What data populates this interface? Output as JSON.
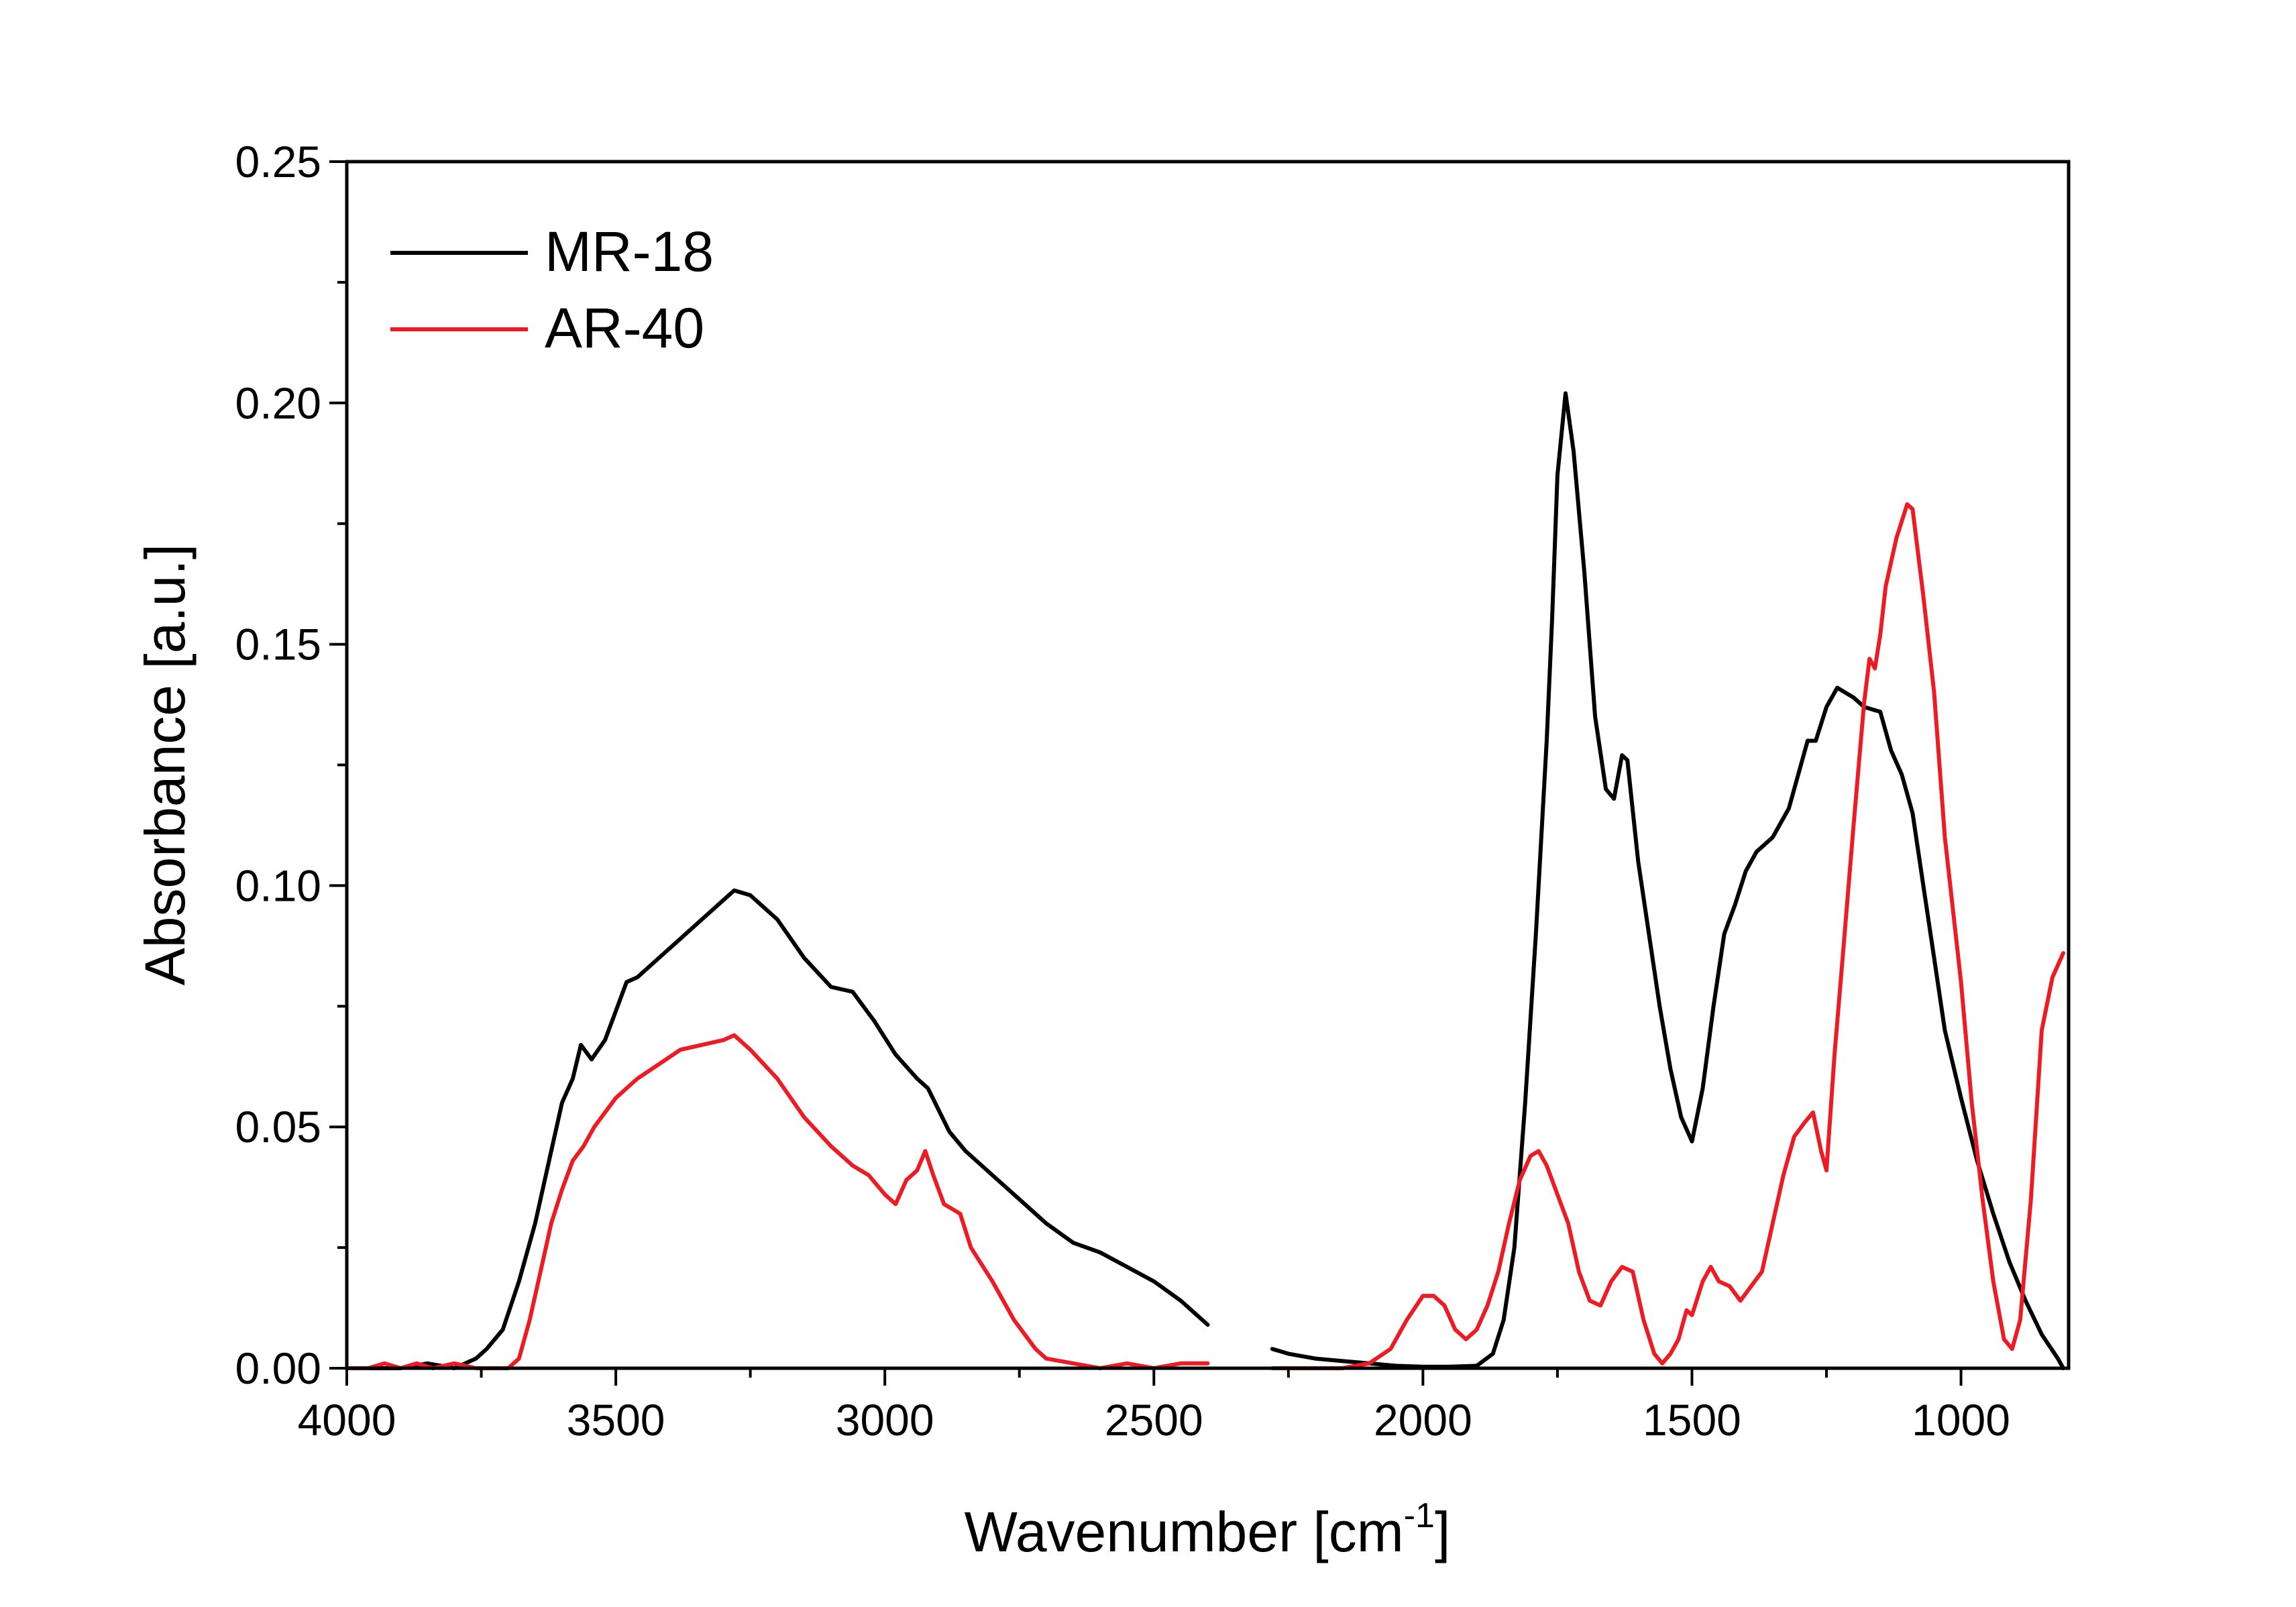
{
  "chart_data": {
    "type": "line",
    "title": "",
    "xlabel": "Wavenumber [cm",
    "xlabel_sup": "-1",
    "xlabel_end": "]",
    "ylabel": "Absorbance [a.u.]",
    "xlim": [
      4000,
      800
    ],
    "ylim": [
      0,
      0.25
    ],
    "x_reversed": true,
    "grid": false,
    "legend_position": "top-left",
    "x_ticks": [
      {
        "value": 4000,
        "label": "4000"
      },
      {
        "value": 3500,
        "label": "3500"
      },
      {
        "value": 3000,
        "label": "3000"
      },
      {
        "value": 2500,
        "label": "2500"
      },
      {
        "value": 2000,
        "label": "2000"
      },
      {
        "value": 1500,
        "label": "1500"
      },
      {
        "value": 1000,
        "label": "1000"
      }
    ],
    "y_ticks": [
      {
        "value": 0,
        "label": "0.00"
      },
      {
        "value": 0.05,
        "label": "0.05"
      },
      {
        "value": 0.1,
        "label": "0.10"
      },
      {
        "value": 0.15,
        "label": "0.15"
      },
      {
        "value": 0.2,
        "label": "0.20"
      },
      {
        "value": 0.25,
        "label": "0.25"
      }
    ],
    "series": [
      {
        "name": "MR-18",
        "color": "#000000",
        "segments": [
          [
            [
              4000,
              0.0
            ],
            [
              3900,
              0.0
            ],
            [
              3850,
              0.001
            ],
            [
              3800,
              0.0
            ],
            [
              3760,
              0.002
            ],
            [
              3740,
              0.004
            ],
            [
              3710,
              0.008
            ],
            [
              3680,
              0.018
            ],
            [
              3650,
              0.03
            ],
            [
              3620,
              0.045
            ],
            [
              3600,
              0.055
            ],
            [
              3580,
              0.06
            ],
            [
              3565,
              0.067
            ],
            [
              3545,
              0.064
            ],
            [
              3520,
              0.068
            ],
            [
              3500,
              0.074
            ],
            [
              3480,
              0.08
            ],
            [
              3460,
              0.081
            ],
            [
              3420,
              0.085
            ],
            [
              3380,
              0.089
            ],
            [
              3340,
              0.093
            ],
            [
              3300,
              0.097
            ],
            [
              3280,
              0.099
            ],
            [
              3250,
              0.098
            ],
            [
              3200,
              0.093
            ],
            [
              3150,
              0.085
            ],
            [
              3100,
              0.079
            ],
            [
              3060,
              0.078
            ],
            [
              3020,
              0.072
            ],
            [
              2980,
              0.065
            ],
            [
              2940,
              0.06
            ],
            [
              2920,
              0.058
            ],
            [
              2880,
              0.049
            ],
            [
              2850,
              0.045
            ],
            [
              2800,
              0.04
            ],
            [
              2750,
              0.035
            ],
            [
              2700,
              0.03
            ],
            [
              2650,
              0.026
            ],
            [
              2600,
              0.024
            ],
            [
              2550,
              0.021
            ],
            [
              2500,
              0.018
            ],
            [
              2450,
              0.014
            ],
            [
              2400,
              0.009
            ]
          ],
          [
            [
              2280,
              0.004
            ],
            [
              2250,
              0.003
            ],
            [
              2200,
              0.002
            ],
            [
              2150,
              0.0015
            ],
            [
              2100,
              0.001
            ],
            [
              2050,
              0.0005
            ],
            [
              2000,
              0.0003
            ],
            [
              1950,
              0.0003
            ],
            [
              1900,
              0.0005
            ],
            [
              1870,
              0.003
            ],
            [
              1850,
              0.01
            ],
            [
              1830,
              0.025
            ],
            [
              1810,
              0.055
            ],
            [
              1790,
              0.09
            ],
            [
              1770,
              0.13
            ],
            [
              1760,
              0.155
            ],
            [
              1750,
              0.185
            ],
            [
              1735,
              0.202
            ],
            [
              1720,
              0.19
            ],
            [
              1700,
              0.165
            ],
            [
              1680,
              0.135
            ],
            [
              1660,
              0.12
            ],
            [
              1645,
              0.118
            ],
            [
              1630,
              0.127
            ],
            [
              1620,
              0.126
            ],
            [
              1600,
              0.105
            ],
            [
              1580,
              0.09
            ],
            [
              1560,
              0.075
            ],
            [
              1540,
              0.062
            ],
            [
              1520,
              0.052
            ],
            [
              1500,
              0.047
            ],
            [
              1480,
              0.058
            ],
            [
              1460,
              0.075
            ],
            [
              1440,
              0.09
            ],
            [
              1420,
              0.096
            ],
            [
              1400,
              0.103
            ],
            [
              1380,
              0.107
            ],
            [
              1350,
              0.11
            ],
            [
              1320,
              0.116
            ],
            [
              1300,
              0.124
            ],
            [
              1285,
              0.13
            ],
            [
              1270,
              0.13
            ],
            [
              1250,
              0.137
            ],
            [
              1230,
              0.141
            ],
            [
              1200,
              0.139
            ],
            [
              1180,
              0.137
            ],
            [
              1150,
              0.136
            ],
            [
              1130,
              0.128
            ],
            [
              1110,
              0.123
            ],
            [
              1090,
              0.115
            ],
            [
              1070,
              0.1
            ],
            [
              1050,
              0.085
            ],
            [
              1030,
              0.07
            ],
            [
              1000,
              0.056
            ],
            [
              970,
              0.043
            ],
            [
              940,
              0.032
            ],
            [
              910,
              0.022
            ],
            [
              880,
              0.014
            ],
            [
              850,
              0.007
            ],
            [
              820,
              0.002
            ],
            [
              810,
              0.0
            ]
          ]
        ]
      },
      {
        "name": "AR-40",
        "color": "#ed1c24",
        "segments": [
          [
            [
              4000,
              0.0
            ],
            [
              3960,
              0.0
            ],
            [
              3930,
              0.001
            ],
            [
              3900,
              0.0
            ],
            [
              3870,
              0.001
            ],
            [
              3840,
              0.0
            ],
            [
              3800,
              0.001
            ],
            [
              3760,
              0.0
            ],
            [
              3730,
              0.0
            ],
            [
              3700,
              0.0
            ],
            [
              3680,
              0.002
            ],
            [
              3660,
              0.01
            ],
            [
              3640,
              0.02
            ],
            [
              3620,
              0.03
            ],
            [
              3600,
              0.037
            ],
            [
              3580,
              0.043
            ],
            [
              3560,
              0.046
            ],
            [
              3540,
              0.05
            ],
            [
              3520,
              0.053
            ],
            [
              3500,
              0.056
            ],
            [
              3460,
              0.06
            ],
            [
              3420,
              0.063
            ],
            [
              3380,
              0.066
            ],
            [
              3340,
              0.067
            ],
            [
              3300,
              0.068
            ],
            [
              3280,
              0.069
            ],
            [
              3250,
              0.066
            ],
            [
              3200,
              0.06
            ],
            [
              3150,
              0.052
            ],
            [
              3100,
              0.046
            ],
            [
              3060,
              0.042
            ],
            [
              3030,
              0.04
            ],
            [
              3000,
              0.036
            ],
            [
              2980,
              0.034
            ],
            [
              2960,
              0.039
            ],
            [
              2940,
              0.041
            ],
            [
              2925,
              0.045
            ],
            [
              2910,
              0.04
            ],
            [
              2890,
              0.034
            ],
            [
              2860,
              0.032
            ],
            [
              2840,
              0.025
            ],
            [
              2800,
              0.018
            ],
            [
              2760,
              0.01
            ],
            [
              2720,
              0.004
            ],
            [
              2700,
              0.002
            ],
            [
              2650,
              0.001
            ],
            [
              2600,
              0.0
            ],
            [
              2550,
              0.001
            ],
            [
              2500,
              0.0
            ],
            [
              2450,
              0.001
            ],
            [
              2400,
              0.001
            ]
          ],
          [
            [
              2280,
              0.0
            ],
            [
              2250,
              0.0
            ],
            [
              2200,
              0.0
            ],
            [
              2150,
              0.0
            ],
            [
              2100,
              0.001
            ],
            [
              2060,
              0.004
            ],
            [
              2030,
              0.01
            ],
            [
              2000,
              0.015
            ],
            [
              1980,
              0.015
            ],
            [
              1960,
              0.013
            ],
            [
              1940,
              0.008
            ],
            [
              1920,
              0.006
            ],
            [
              1900,
              0.008
            ],
            [
              1880,
              0.013
            ],
            [
              1860,
              0.02
            ],
            [
              1840,
              0.03
            ],
            [
              1820,
              0.039
            ],
            [
              1800,
              0.044
            ],
            [
              1785,
              0.045
            ],
            [
              1770,
              0.042
            ],
            [
              1750,
              0.036
            ],
            [
              1730,
              0.03
            ],
            [
              1710,
              0.02
            ],
            [
              1690,
              0.014
            ],
            [
              1670,
              0.013
            ],
            [
              1650,
              0.018
            ],
            [
              1630,
              0.021
            ],
            [
              1610,
              0.02
            ],
            [
              1590,
              0.01
            ],
            [
              1570,
              0.003
            ],
            [
              1555,
              0.001
            ],
            [
              1540,
              0.003
            ],
            [
              1525,
              0.006
            ],
            [
              1510,
              0.012
            ],
            [
              1500,
              0.011
            ],
            [
              1480,
              0.018
            ],
            [
              1465,
              0.021
            ],
            [
              1450,
              0.018
            ],
            [
              1430,
              0.017
            ],
            [
              1410,
              0.014
            ],
            [
              1390,
              0.017
            ],
            [
              1370,
              0.02
            ],
            [
              1350,
              0.03
            ],
            [
              1330,
              0.04
            ],
            [
              1310,
              0.048
            ],
            [
              1290,
              0.051
            ],
            [
              1275,
              0.053
            ],
            [
              1260,
              0.045
            ],
            [
              1250,
              0.041
            ],
            [
              1235,
              0.065
            ],
            [
              1220,
              0.085
            ],
            [
              1200,
              0.112
            ],
            [
              1180,
              0.138
            ],
            [
              1170,
              0.147
            ],
            [
              1160,
              0.145
            ],
            [
              1150,
              0.152
            ],
            [
              1140,
              0.162
            ],
            [
              1120,
              0.172
            ],
            [
              1100,
              0.179
            ],
            [
              1090,
              0.178
            ],
            [
              1070,
              0.16
            ],
            [
              1050,
              0.14
            ],
            [
              1030,
              0.11
            ],
            [
              1000,
              0.08
            ],
            [
              980,
              0.055
            ],
            [
              960,
              0.035
            ],
            [
              940,
              0.018
            ],
            [
              920,
              0.006
            ],
            [
              905,
              0.004
            ],
            [
              890,
              0.01
            ],
            [
              870,
              0.035
            ],
            [
              850,
              0.07
            ],
            [
              830,
              0.081
            ],
            [
              810,
              0.086
            ]
          ]
        ]
      }
    ]
  }
}
